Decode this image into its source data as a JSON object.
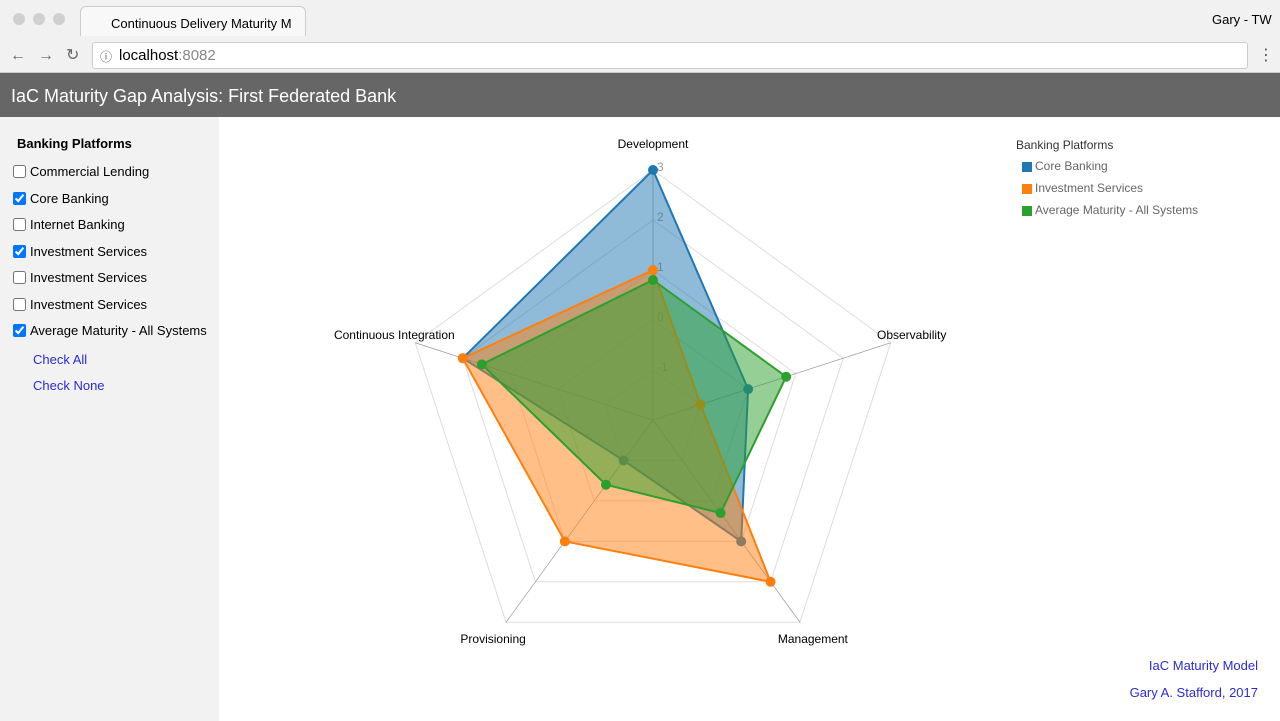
{
  "browser": {
    "tab_title": "Continuous Delivery Maturity M",
    "url_host": "localhost",
    "url_port": ":8082",
    "profile": "Gary - TW"
  },
  "header": {
    "title": "IaC Maturity Gap Analysis: First Federated Bank"
  },
  "sidebar": {
    "title": "Banking Platforms",
    "items": [
      {
        "label": "Commercial Lending",
        "checked": false
      },
      {
        "label": "Core Banking",
        "checked": true
      },
      {
        "label": "Internet Banking",
        "checked": false
      },
      {
        "label": "Investment Services",
        "checked": true
      },
      {
        "label": "Investment Services",
        "checked": false
      },
      {
        "label": "Investment Services",
        "checked": false
      },
      {
        "label": "Average Maturity - All Systems",
        "checked": true
      }
    ],
    "links": [
      "Check All",
      "Check None"
    ]
  },
  "chart_data": {
    "type": "radar",
    "legend_title": "Banking Platforms",
    "axes": [
      "Development",
      "Observability",
      "Management",
      "Provisioning",
      "Continuous Integration"
    ],
    "rlim": [
      -2,
      3
    ],
    "rticks": [
      -1,
      0,
      1,
      2,
      3
    ],
    "series": [
      {
        "name": "Core Banking",
        "color": "#1f77b4",
        "values": [
          3,
          0,
          1,
          -1,
          2
        ]
      },
      {
        "name": "Investment Services",
        "color": "#ff7f0e",
        "values": [
          1,
          -1,
          2,
          1,
          2
        ]
      },
      {
        "name": "Average Maturity - All Systems",
        "color": "#2ca02c",
        "values": [
          0.8,
          0.8,
          0.3,
          -0.4,
          1.6
        ]
      }
    ]
  },
  "footer": {
    "links": [
      "IaC Maturity Model",
      "Gary A. Stafford, 2017"
    ]
  }
}
